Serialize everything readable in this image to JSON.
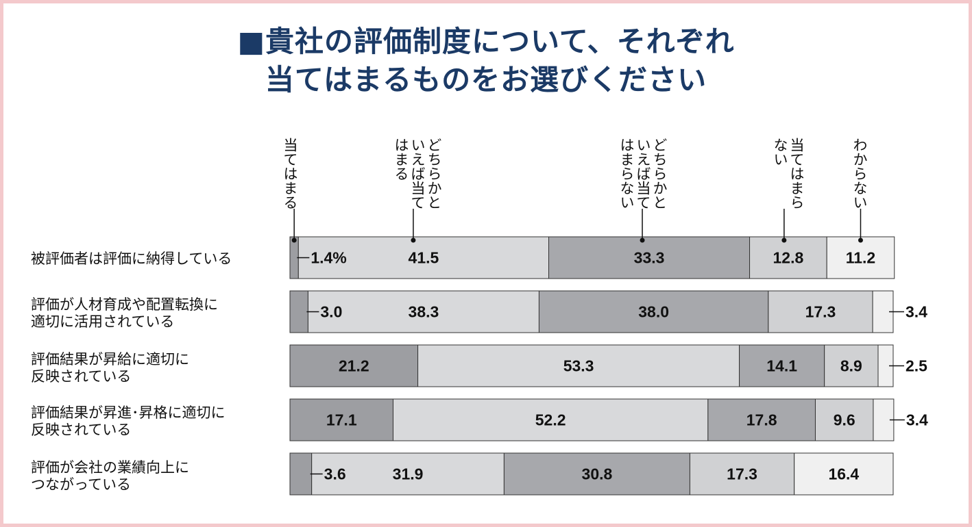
{
  "title_line1": "■貴社の評価制度について、それぞれ",
  "title_line2": "当てはまるものをお選びください",
  "chart_data": {
    "type": "bar",
    "stacked": true,
    "orientation": "horizontal",
    "categories": [
      "被評価者は評価に納得している",
      "評価が人材育成や配置転換に\n適切に活用されている",
      "評価結果が昇給に適切に\n反映されている",
      "評価結果が昇進･昇格に適切に\n反映されている",
      "評価が会社の業績向上に\nつながっている"
    ],
    "series": [
      {
        "name": "当てはまる",
        "values": [
          1.4,
          3.0,
          21.2,
          17.1,
          3.6
        ]
      },
      {
        "name": "どちらかと\nいえば当て\nはまる",
        "values": [
          41.5,
          38.3,
          53.3,
          52.2,
          31.9
        ]
      },
      {
        "name": "どちらかと\nいえば当て\nはまらない",
        "values": [
          33.3,
          38.0,
          14.1,
          17.8,
          30.8
        ]
      },
      {
        "name": "当てはまら\nない",
        "values": [
          12.8,
          17.3,
          8.9,
          9.6,
          17.3
        ]
      },
      {
        "name": "わからない",
        "values": [
          11.2,
          3.4,
          2.5,
          3.4,
          16.4
        ]
      }
    ],
    "first_value_suffix": "%",
    "colors": [
      "#9d9ea2",
      "#d8d9db",
      "#a7a8ac",
      "#d0d1d3",
      "#f0f0f0"
    ],
    "xlim": [
      0,
      100
    ]
  }
}
